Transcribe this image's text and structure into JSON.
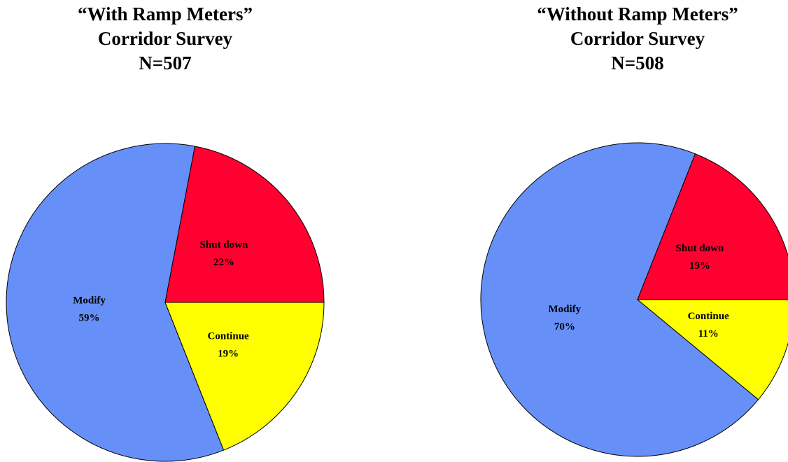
{
  "chart_data": [
    {
      "type": "pie",
      "title": [
        "“With Ramp Meters”",
        "Corridor Survey",
        "N=507"
      ],
      "categories": [
        "Modify",
        "Shut down",
        "Continue"
      ],
      "values": [
        59,
        22,
        19
      ],
      "value_labels": [
        "59%",
        "22%",
        "19%"
      ],
      "colors": [
        "#6690f8",
        "#ff0030",
        "#ffff00"
      ]
    },
    {
      "type": "pie",
      "title": [
        "“Without Ramp Meters”",
        "Corridor Survey",
        "N=508"
      ],
      "categories": [
        "Modify",
        "Shut down",
        "Continue"
      ],
      "values": [
        70,
        19,
        11
      ],
      "value_labels": [
        "70%",
        "19%",
        "11%"
      ],
      "colors": [
        "#6690f8",
        "#ff0030",
        "#ffff00"
      ]
    }
  ]
}
